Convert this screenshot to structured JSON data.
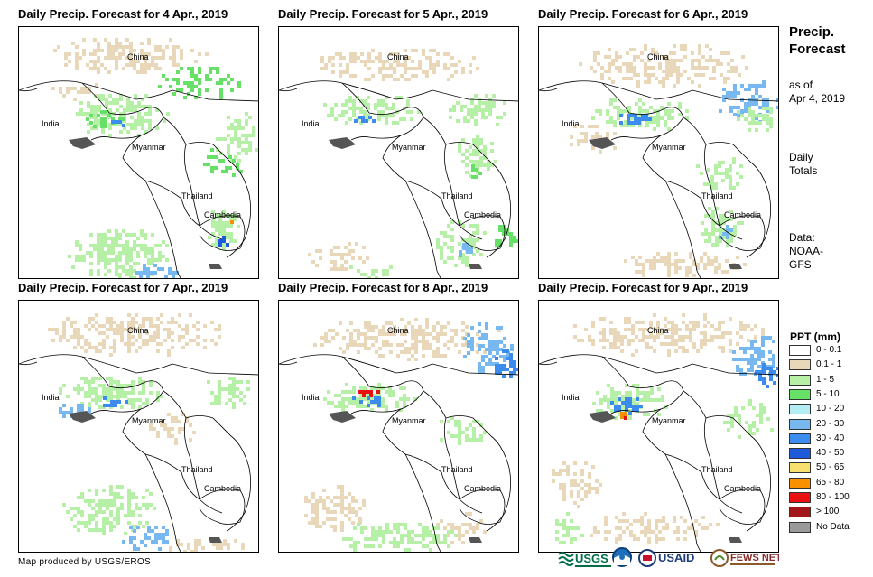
{
  "panels": [
    {
      "title": "Daily Precip. Forecast for 4 Apr., 2019"
    },
    {
      "title": "Daily Precip. Forecast for 5 Apr., 2019"
    },
    {
      "title": "Daily Precip. Forecast for 6 Apr., 2019"
    },
    {
      "title": "Daily Precip. Forecast for 7 Apr., 2019"
    },
    {
      "title": "Daily Precip. Forecast for 8 Apr., 2019"
    },
    {
      "title": "Daily Precip. Forecast for 9 Apr., 2019"
    }
  ],
  "map_labels": {
    "china": "China",
    "india": "India",
    "myanmar": "Myanmar",
    "thailand": "Thailand",
    "cambodia": "Cambodia"
  },
  "side": {
    "title_line1": "Precip.",
    "title_line2": "Forecast",
    "asof_line1": "as of",
    "asof_line2": "Apr 4, 2019",
    "totals_line1": "Daily",
    "totals_line2": "Totals",
    "data_line1": "Data:",
    "data_line2": "NOAA-",
    "data_line3": "GFS"
  },
  "legend": {
    "title": "PPT (mm)",
    "items": [
      {
        "label": "0 - 0.1",
        "color": "#ffffff"
      },
      {
        "label": "0.1 - 1",
        "color": "#e8d7b8"
      },
      {
        "label": "1 - 5",
        "color": "#b6f0a6"
      },
      {
        "label": "5 - 10",
        "color": "#66e066"
      },
      {
        "label": "10 - 20",
        "color": "#b4ecf4"
      },
      {
        "label": "20 - 30",
        "color": "#78b8f0"
      },
      {
        "label": "30 - 40",
        "color": "#3c8cf0"
      },
      {
        "label": "40 - 50",
        "color": "#1e5adc"
      },
      {
        "label": "50 - 65",
        "color": "#f8e070"
      },
      {
        "label": "65 - 80",
        "color": "#f89000"
      },
      {
        "label": "80 - 100",
        "color": "#e81010"
      },
      {
        "label": "> 100",
        "color": "#a01818"
      },
      {
        "label": "No Data",
        "color": "#9a9a9a"
      }
    ]
  },
  "credit": "Map produced by USGS/EROS",
  "logos": {
    "usgs": "USGS",
    "usaid": "USAID",
    "fews": "FEWS NET"
  }
}
